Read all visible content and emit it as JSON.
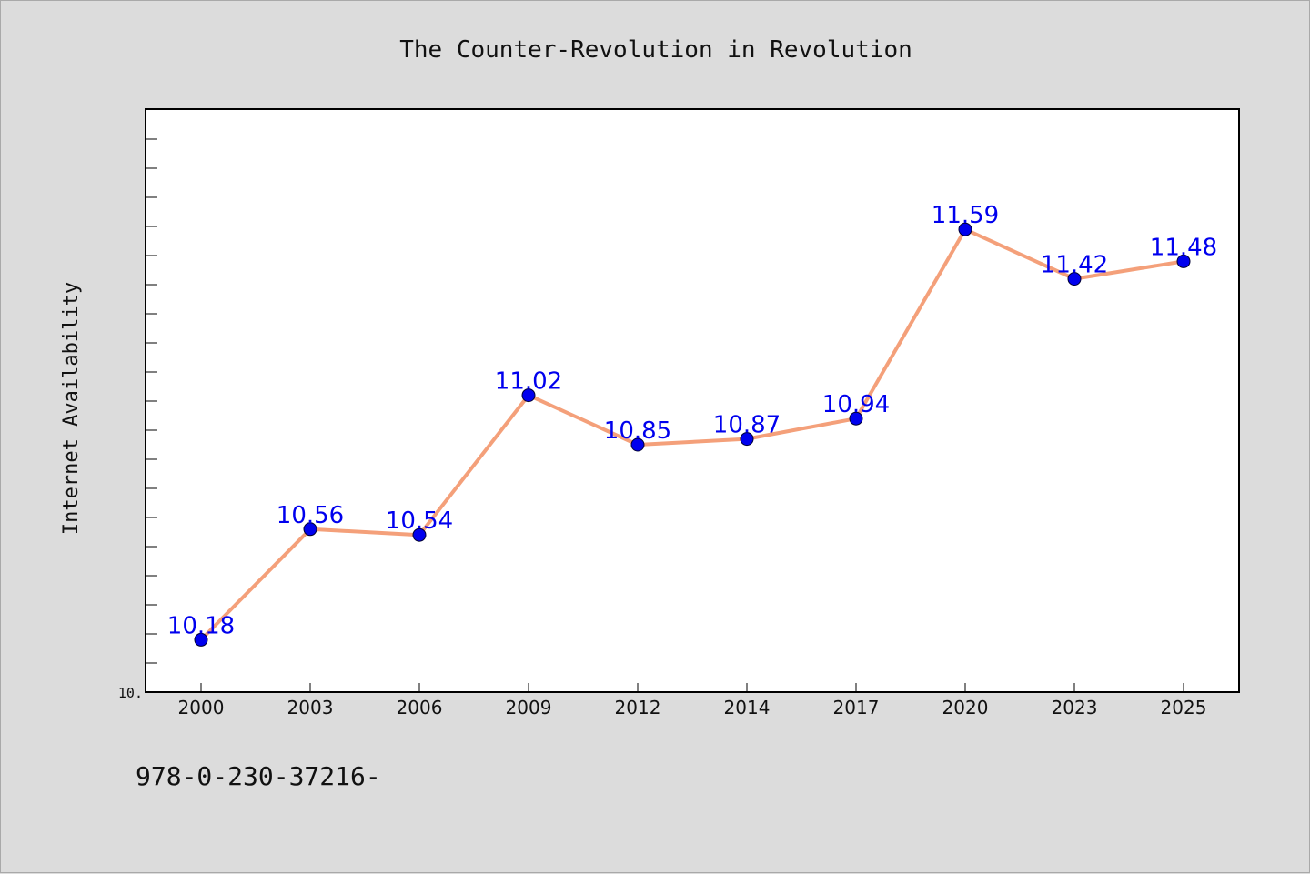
{
  "chart_data": {
    "type": "line",
    "title": "The Counter-Revolution in Revolution",
    "xlabel": "",
    "ylabel": "Internet Availability",
    "categories": [
      "2000",
      "2003",
      "2006",
      "2009",
      "2012",
      "2014",
      "2017",
      "2020",
      "2023",
      "2025"
    ],
    "series": [
      {
        "values": [
          10.18,
          10.56,
          10.54,
          11.02,
          10.85,
          10.87,
          10.94,
          11.59,
          11.42,
          11.48
        ],
        "data_labels": [
          "10.18",
          "10.56",
          "10.54",
          "11.02",
          "10.85",
          "10.87",
          "10.94",
          "11.59",
          "11.42",
          "11.48"
        ]
      }
    ],
    "ylim": [
      10.0,
      12.0
    ],
    "ytick_label": "10.",
    "grid": false,
    "colors": {
      "line": "#f4a07a",
      "marker": "#0000ee",
      "label": "#0000ee"
    }
  },
  "footer": {
    "code": "978-0-230-37216-"
  }
}
